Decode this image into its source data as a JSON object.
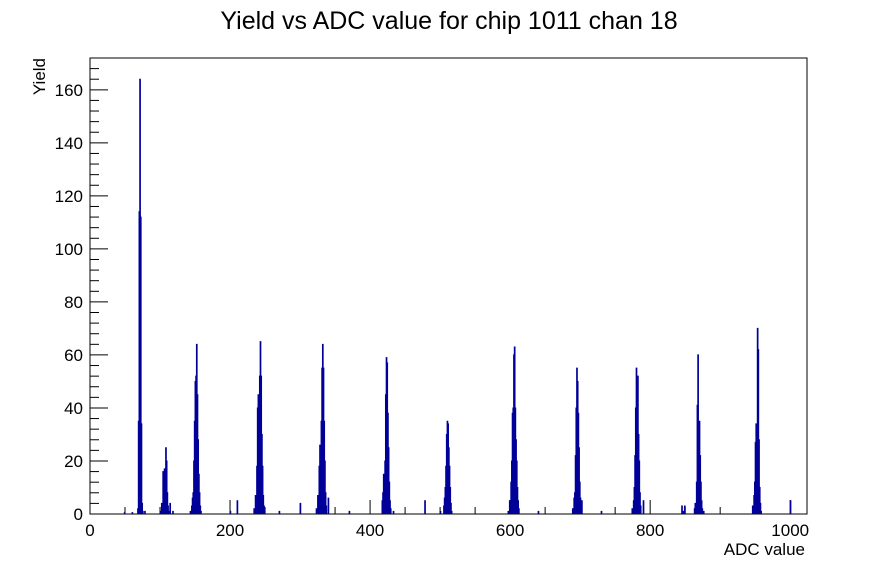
{
  "chart_data": {
    "type": "histogram",
    "title": "Yield vs ADC value for chip 1011 chan 18",
    "xlabel": "ADC value",
    "ylabel": "Yield",
    "xlim": [
      0,
      1024
    ],
    "ylim": [
      0,
      172
    ],
    "x_ticks": [
      "0",
      "200",
      "400",
      "600",
      "800",
      "1000"
    ],
    "y_ticks": [
      "0",
      "20",
      "40",
      "60",
      "80",
      "100",
      "120",
      "140",
      "160"
    ],
    "color": "#000099",
    "bins": [
      {
        "x": 49,
        "y": 0.5
      },
      {
        "x": 60,
        "y": 0.5
      },
      {
        "x": 68,
        "y": 2
      },
      {
        "x": 69,
        "y": 35
      },
      {
        "x": 70,
        "y": 114
      },
      {
        "x": 71,
        "y": 164
      },
      {
        "x": 72,
        "y": 112
      },
      {
        "x": 73,
        "y": 34
      },
      {
        "x": 74,
        "y": 4
      },
      {
        "x": 75,
        "y": 1
      },
      {
        "x": 78,
        "y": 1
      },
      {
        "x": 100,
        "y": 1
      },
      {
        "x": 102,
        "y": 4
      },
      {
        "x": 104,
        "y": 16
      },
      {
        "x": 105,
        "y": 12
      },
      {
        "x": 106,
        "y": 17
      },
      {
        "x": 107,
        "y": 10
      },
      {
        "x": 108,
        "y": 25
      },
      {
        "x": 109,
        "y": 20
      },
      {
        "x": 110,
        "y": 8
      },
      {
        "x": 111,
        "y": 3
      },
      {
        "x": 112,
        "y": 1
      },
      {
        "x": 114,
        "y": 4
      },
      {
        "x": 118,
        "y": 1
      },
      {
        "x": 143,
        "y": 1
      },
      {
        "x": 145,
        "y": 3
      },
      {
        "x": 146,
        "y": 6
      },
      {
        "x": 147,
        "y": 8
      },
      {
        "x": 148,
        "y": 20
      },
      {
        "x": 149,
        "y": 35
      },
      {
        "x": 150,
        "y": 50
      },
      {
        "x": 151,
        "y": 52
      },
      {
        "x": 152,
        "y": 64
      },
      {
        "x": 153,
        "y": 45
      },
      {
        "x": 154,
        "y": 28
      },
      {
        "x": 155,
        "y": 15
      },
      {
        "x": 156,
        "y": 8
      },
      {
        "x": 157,
        "y": 3
      },
      {
        "x": 158,
        "y": 1
      },
      {
        "x": 200,
        "y": 1
      },
      {
        "x": 210,
        "y": 5
      },
      {
        "x": 234,
        "y": 2
      },
      {
        "x": 236,
        "y": 7
      },
      {
        "x": 238,
        "y": 18
      },
      {
        "x": 239,
        "y": 40
      },
      {
        "x": 240,
        "y": 45
      },
      {
        "x": 241,
        "y": 35
      },
      {
        "x": 242,
        "y": 52
      },
      {
        "x": 243,
        "y": 65
      },
      {
        "x": 244,
        "y": 52
      },
      {
        "x": 245,
        "y": 30
      },
      {
        "x": 246,
        "y": 18
      },
      {
        "x": 247,
        "y": 7
      },
      {
        "x": 248,
        "y": 3
      },
      {
        "x": 249,
        "y": 1
      },
      {
        "x": 270,
        "y": 1
      },
      {
        "x": 300,
        "y": 4
      },
      {
        "x": 323,
        "y": 2
      },
      {
        "x": 325,
        "y": 7
      },
      {
        "x": 327,
        "y": 18
      },
      {
        "x": 328,
        "y": 26
      },
      {
        "x": 329,
        "y": 20
      },
      {
        "x": 330,
        "y": 35
      },
      {
        "x": 331,
        "y": 55
      },
      {
        "x": 332,
        "y": 64
      },
      {
        "x": 333,
        "y": 55
      },
      {
        "x": 334,
        "y": 35
      },
      {
        "x": 335,
        "y": 20
      },
      {
        "x": 336,
        "y": 8
      },
      {
        "x": 337,
        "y": 3
      },
      {
        "x": 340,
        "y": 6
      },
      {
        "x": 370,
        "y": 1
      },
      {
        "x": 417,
        "y": 5
      },
      {
        "x": 418,
        "y": 8
      },
      {
        "x": 419,
        "y": 15
      },
      {
        "x": 420,
        "y": 8
      },
      {
        "x": 421,
        "y": 20
      },
      {
        "x": 422,
        "y": 45
      },
      {
        "x": 423,
        "y": 59
      },
      {
        "x": 424,
        "y": 57
      },
      {
        "x": 425,
        "y": 38
      },
      {
        "x": 426,
        "y": 25
      },
      {
        "x": 427,
        "y": 12
      },
      {
        "x": 428,
        "y": 5
      },
      {
        "x": 429,
        "y": 2
      },
      {
        "x": 433,
        "y": 1
      },
      {
        "x": 478,
        "y": 5
      },
      {
        "x": 500,
        "y": 1
      },
      {
        "x": 505,
        "y": 3
      },
      {
        "x": 506,
        "y": 6
      },
      {
        "x": 507,
        "y": 10
      },
      {
        "x": 508,
        "y": 18
      },
      {
        "x": 509,
        "y": 30
      },
      {
        "x": 510,
        "y": 35
      },
      {
        "x": 511,
        "y": 34
      },
      {
        "x": 512,
        "y": 25
      },
      {
        "x": 513,
        "y": 18
      },
      {
        "x": 514,
        "y": 10
      },
      {
        "x": 515,
        "y": 4
      },
      {
        "x": 516,
        "y": 1
      },
      {
        "x": 597,
        "y": 1
      },
      {
        "x": 599,
        "y": 5
      },
      {
        "x": 601,
        "y": 12
      },
      {
        "x": 602,
        "y": 20
      },
      {
        "x": 603,
        "y": 38
      },
      {
        "x": 604,
        "y": 40
      },
      {
        "x": 605,
        "y": 60
      },
      {
        "x": 606,
        "y": 63
      },
      {
        "x": 607,
        "y": 40
      },
      {
        "x": 608,
        "y": 28
      },
      {
        "x": 609,
        "y": 20
      },
      {
        "x": 610,
        "y": 10
      },
      {
        "x": 611,
        "y": 5
      },
      {
        "x": 612,
        "y": 2
      },
      {
        "x": 640,
        "y": 1
      },
      {
        "x": 689,
        "y": 2
      },
      {
        "x": 691,
        "y": 6
      },
      {
        "x": 692,
        "y": 8
      },
      {
        "x": 693,
        "y": 22
      },
      {
        "x": 694,
        "y": 40
      },
      {
        "x": 695,
        "y": 55
      },
      {
        "x": 696,
        "y": 50
      },
      {
        "x": 697,
        "y": 38
      },
      {
        "x": 698,
        "y": 25
      },
      {
        "x": 699,
        "y": 12
      },
      {
        "x": 700,
        "y": 6
      },
      {
        "x": 701,
        "y": 3
      },
      {
        "x": 702,
        "y": 5
      },
      {
        "x": 730,
        "y": 1
      },
      {
        "x": 774,
        "y": 2
      },
      {
        "x": 776,
        "y": 5
      },
      {
        "x": 777,
        "y": 10
      },
      {
        "x": 778,
        "y": 22
      },
      {
        "x": 779,
        "y": 40
      },
      {
        "x": 780,
        "y": 55
      },
      {
        "x": 781,
        "y": 48
      },
      {
        "x": 782,
        "y": 52
      },
      {
        "x": 783,
        "y": 30
      },
      {
        "x": 784,
        "y": 20
      },
      {
        "x": 785,
        "y": 8
      },
      {
        "x": 786,
        "y": 3
      },
      {
        "x": 790,
        "y": 5
      },
      {
        "x": 845,
        "y": 3
      },
      {
        "x": 847,
        "y": 1
      },
      {
        "x": 849,
        "y": 3
      },
      {
        "x": 863,
        "y": 2
      },
      {
        "x": 864,
        "y": 4
      },
      {
        "x": 865,
        "y": 3
      },
      {
        "x": 866,
        "y": 12
      },
      {
        "x": 867,
        "y": 41
      },
      {
        "x": 868,
        "y": 60
      },
      {
        "x": 869,
        "y": 20
      },
      {
        "x": 870,
        "y": 35
      },
      {
        "x": 871,
        "y": 22
      },
      {
        "x": 872,
        "y": 12
      },
      {
        "x": 873,
        "y": 5
      },
      {
        "x": 874,
        "y": 2
      },
      {
        "x": 876,
        "y": 1
      },
      {
        "x": 946,
        "y": 3
      },
      {
        "x": 948,
        "y": 7
      },
      {
        "x": 949,
        "y": 12
      },
      {
        "x": 950,
        "y": 27
      },
      {
        "x": 951,
        "y": 34
      },
      {
        "x": 952,
        "y": 33
      },
      {
        "x": 953,
        "y": 70
      },
      {
        "x": 954,
        "y": 62
      },
      {
        "x": 955,
        "y": 28
      },
      {
        "x": 956,
        "y": 10
      },
      {
        "x": 957,
        "y": 4
      },
      {
        "x": 958,
        "y": 1
      },
      {
        "x": 1000,
        "y": 5
      }
    ]
  }
}
